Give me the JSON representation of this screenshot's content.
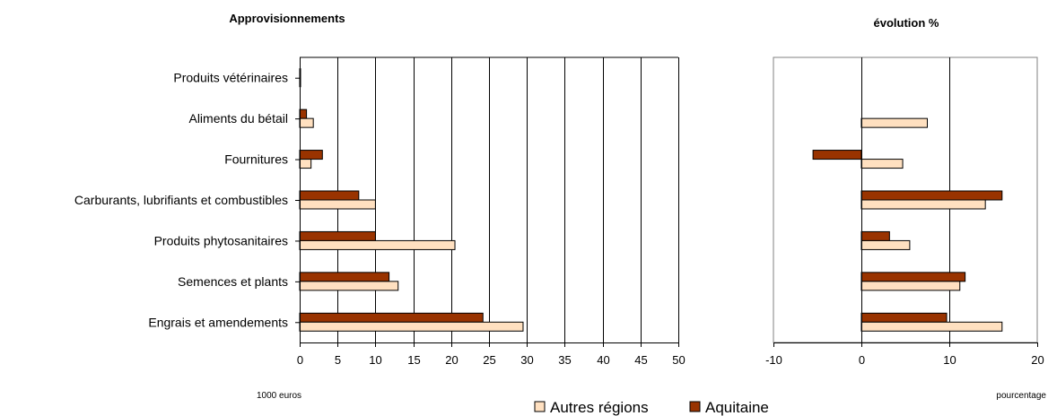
{
  "chart_data": [
    {
      "type": "bar",
      "orientation": "horizontal",
      "title": "Approvisionnements",
      "xlabel": "1000 euros",
      "xlim": [
        0,
        50
      ],
      "xticks": [
        0,
        5,
        10,
        15,
        20,
        25,
        30,
        35,
        40,
        45,
        50
      ],
      "grid": "vertical",
      "categories": [
        "Produits vétérinaires",
        "Aliments du bétail",
        "Fournitures",
        "Carburants, lubrifiants et combustibles",
        "Produits phytosanitaires",
        "Semences et plants",
        "Engrais et amendements"
      ],
      "series": [
        {
          "name": "Aquitaine",
          "color": "#993300",
          "values": [
            0.1,
            0.9,
            3.0,
            7.8,
            10.0,
            11.8,
            24.2
          ]
        },
        {
          "name": "Autres régions",
          "color": "#ffe0c0",
          "values": [
            0.1,
            1.8,
            1.5,
            10.0,
            20.5,
            13.0,
            29.5
          ]
        }
      ]
    },
    {
      "type": "bar",
      "orientation": "horizontal",
      "title": "évolution %",
      "xlabel": "pourcentage",
      "xlim": [
        -10,
        20
      ],
      "xticks": [
        -10,
        0,
        10,
        20
      ],
      "grid": "vertical",
      "categories": [
        "Produits vétérinaires",
        "Aliments du bétail",
        "Fournitures",
        "Carburants, lubrifiants et combustibles",
        "Produits phytosanitaires",
        "Semences et plants",
        "Engrais et amendements"
      ],
      "series": [
        {
          "name": "Aquitaine",
          "color": "#993300",
          "values": [
            0,
            0,
            -5.5,
            16.0,
            3.2,
            11.8,
            9.7
          ]
        },
        {
          "name": "Autres régions",
          "color": "#ffe0c0",
          "values": [
            0,
            7.5,
            4.7,
            14.1,
            5.5,
            11.2,
            16.0
          ]
        }
      ]
    }
  ],
  "legend": {
    "placement": "bottom-center",
    "items": [
      {
        "label": "Autres régions",
        "color": "#ffe0c0"
      },
      {
        "label": "Aquitaine",
        "color": "#993300"
      }
    ]
  }
}
